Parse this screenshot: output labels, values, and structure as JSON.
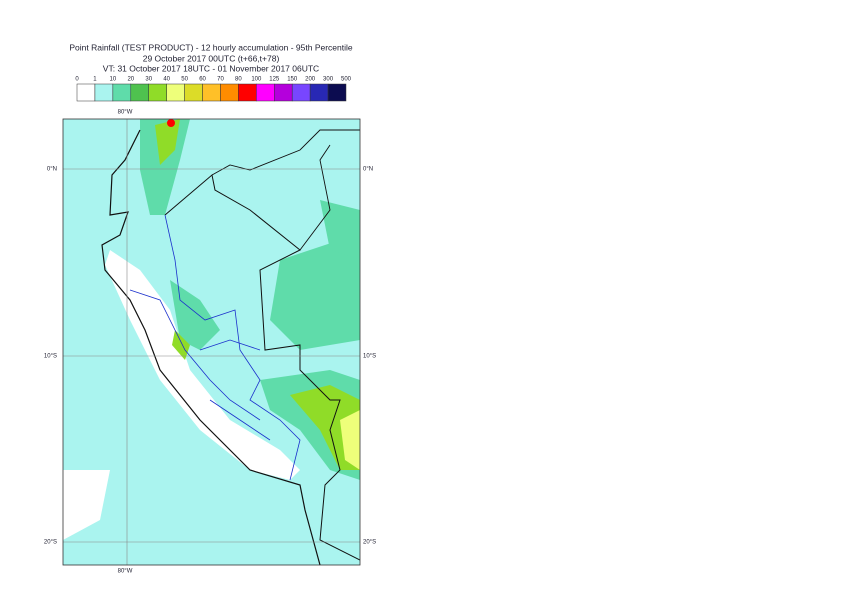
{
  "header": {
    "lines": [
      "Point Rainfall (TEST PRODUCT) - 12 hourly accumulation - 95th Percentile",
      "29 October 2017 00UTC (t+66,t+78)",
      "VT: 31 October 2017 18UTC - 01 November 2017 06UTC"
    ]
  },
  "legend": {
    "ticks": [
      0,
      1,
      10,
      20,
      30,
      40,
      50,
      60,
      70,
      80,
      100,
      125,
      150,
      200,
      300,
      500
    ],
    "colors": [
      "#ffffff",
      "#aaf4ef",
      "#5fdcaa",
      "#4fc24f",
      "#90dc28",
      "#eeff7a",
      "#dcdc28",
      "#ffc028",
      "#ff8c00",
      "#ff0000",
      "#ff00ff",
      "#b400dc",
      "#7846ff",
      "#2828b4",
      "#0c0c50"
    ]
  },
  "map": {
    "lon_labels": [
      "80°W",
      "80°W"
    ],
    "lat_labels": [
      "0°N",
      "0°N",
      "10°S",
      "10°S",
      "20°S",
      "20°S"
    ]
  }
}
